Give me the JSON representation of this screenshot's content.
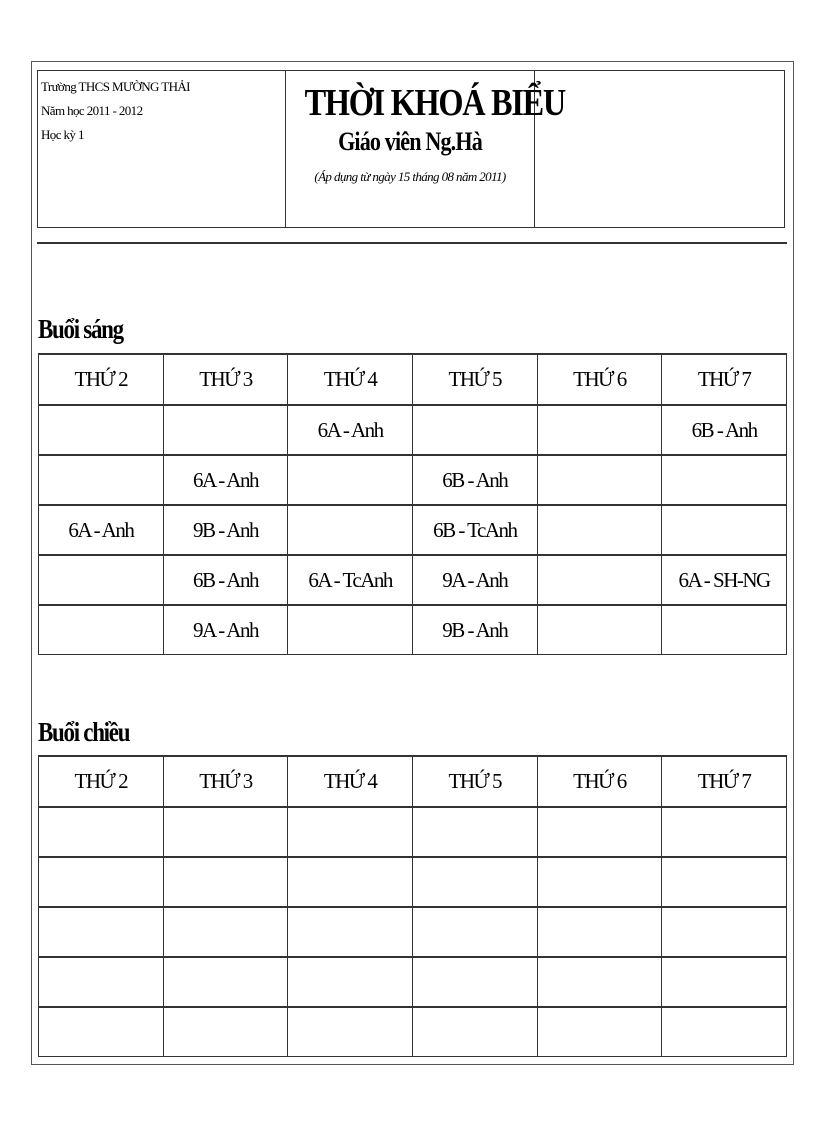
{
  "header": {
    "school": "Trường THCS MƯỜNG THẢI",
    "year": "Năm học 2011 - 2012",
    "term": "Học kỳ 1",
    "title": "THỜI KHOÁ BIỂU",
    "teacher": "Giáo viên Ng.Hà",
    "applied": "(Áp dụng từ ngày 15 tháng 08 năm 2011)"
  },
  "days": [
    "THỨ 2",
    "THỨ 3",
    "THỨ 4",
    "THỨ 5",
    "THỨ 6",
    "THỨ 7"
  ],
  "morning": {
    "label": "Buổi sáng",
    "rows": [
      [
        "",
        "",
        "6A - Anh",
        "",
        "",
        "6B - Anh"
      ],
      [
        "",
        "6A - Anh",
        "",
        "6B - Anh",
        "",
        ""
      ],
      [
        "6A - Anh",
        "9B - Anh",
        "",
        "6B - TcAnh",
        "",
        ""
      ],
      [
        "",
        "6B - Anh",
        "6A - TcAnh",
        "9A - Anh",
        "",
        "6A - SH-NG"
      ],
      [
        "",
        "9A - Anh",
        "",
        "9B - Anh",
        "",
        ""
      ]
    ]
  },
  "afternoon": {
    "label": "Buổi chiều",
    "rows": [
      [
        "",
        "",
        "",
        "",
        "",
        ""
      ],
      [
        "",
        "",
        "",
        "",
        "",
        ""
      ],
      [
        "",
        "",
        "",
        "",
        "",
        ""
      ],
      [
        "",
        "",
        "",
        "",
        "",
        ""
      ],
      [
        "",
        "",
        "",
        "",
        "",
        ""
      ]
    ]
  }
}
